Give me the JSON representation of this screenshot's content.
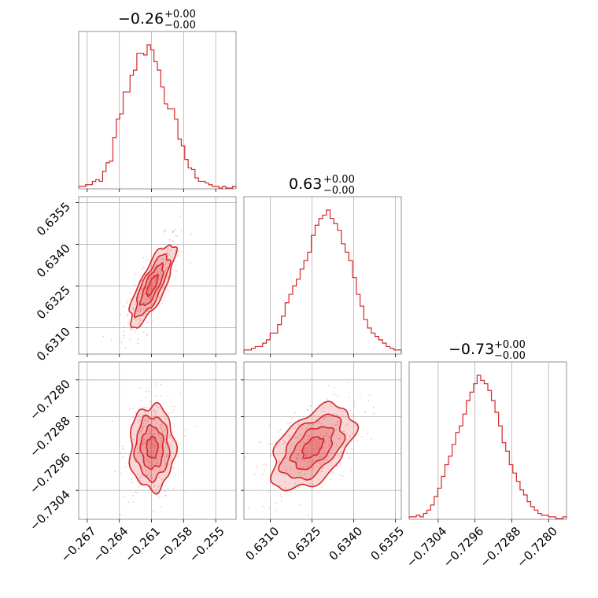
{
  "chart_data": {
    "type": "corner",
    "color": "#d62728",
    "grid": true,
    "parameters": [
      {
        "title_value": "−0.26",
        "title_plus": "+0.00",
        "title_minus": "−0.00",
        "range": [
          -0.2678,
          -0.2531
        ],
        "ticks": [
          -0.267,
          -0.264,
          -0.261,
          -0.258,
          -0.255
        ],
        "tick_labels": [
          "−0.267",
          "−0.264",
          "−0.261",
          "−0.258",
          "−0.255"
        ],
        "mean": -0.26093,
        "std": 0.00105,
        "histogram": [
          0.01,
          0.01,
          0.02,
          0.02,
          0.04,
          0.05,
          0.04,
          0.1,
          0.15,
          0.16,
          0.3,
          0.41,
          0.44,
          0.57,
          0.57,
          0.67,
          0.7,
          0.8,
          0.8,
          0.79,
          0.85,
          0.82,
          0.75,
          0.7,
          0.6,
          0.5,
          0.47,
          0.47,
          0.41,
          0.29,
          0.25,
          0.17,
          0.12,
          0.11,
          0.06,
          0.04,
          0.04,
          0.03,
          0.02,
          0.01,
          0.01,
          0.0,
          0.01,
          0.0,
          0.0,
          0.01
        ]
      },
      {
        "title_value": "0.63",
        "title_plus": "+0.00",
        "title_minus": "−0.00",
        "range": [
          0.63005,
          0.63571
        ],
        "ticks": [
          0.631,
          0.6325,
          0.634,
          0.6355
        ],
        "tick_labels": [
          "0.6310",
          "0.6325",
          "0.6340",
          "0.6355"
        ],
        "mean": 0.63252,
        "std": 0.00074,
        "histogram": [
          0.02,
          0.02,
          0.03,
          0.04,
          0.04,
          0.06,
          0.08,
          0.12,
          0.12,
          0.17,
          0.22,
          0.3,
          0.35,
          0.4,
          0.44,
          0.5,
          0.55,
          0.6,
          0.7,
          0.76,
          0.8,
          0.82,
          0.85,
          0.8,
          0.77,
          0.73,
          0.65,
          0.6,
          0.55,
          0.45,
          0.35,
          0.28,
          0.2,
          0.15,
          0.12,
          0.1,
          0.08,
          0.06,
          0.04,
          0.03,
          0.02,
          0.02
        ]
      },
      {
        "title_value": "−0.73",
        "title_plus": "+0.00",
        "title_minus": "−0.00",
        "range": [
          -0.73103,
          -0.72761
        ],
        "ticks": [
          -0.7304,
          -0.7296,
          -0.7288,
          -0.728
        ],
        "tick_labels": [
          "−0.7304",
          "−0.7296",
          "−0.7288",
          "−0.7280"
        ],
        "mean": -0.72947,
        "std": 0.00046,
        "histogram": [
          0.01,
          0.01,
          0.02,
          0.01,
          0.03,
          0.05,
          0.08,
          0.13,
          0.18,
          0.25,
          0.32,
          0.37,
          0.44,
          0.51,
          0.55,
          0.62,
          0.7,
          0.75,
          0.8,
          0.85,
          0.82,
          0.8,
          0.76,
          0.7,
          0.63,
          0.55,
          0.45,
          0.4,
          0.32,
          0.27,
          0.22,
          0.17,
          0.14,
          0.1,
          0.07,
          0.05,
          0.03,
          0.02,
          0.02,
          0.01,
          0.01,
          0.0,
          0.0,
          0.01
        ]
      }
    ],
    "correlations": {
      "p0_p1": 0.78,
      "p0_p2": 0.0,
      "p1_p2": 0.5
    },
    "contour_levels": [
      0.5,
      1.0,
      1.5,
      2.0
    ]
  }
}
